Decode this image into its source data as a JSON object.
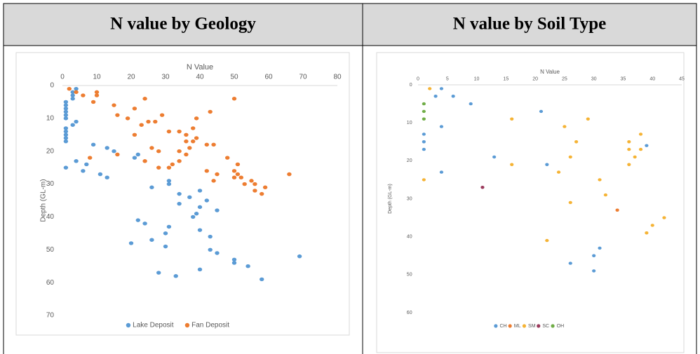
{
  "chart_data": [
    {
      "type": "scatter",
      "title": "N value by Geology",
      "xlabel": "N Value",
      "ylabel": "Depth (GL-m)",
      "xlim": [
        0,
        80
      ],
      "xticks": [
        0,
        10,
        20,
        30,
        40,
        50,
        60,
        70,
        80
      ],
      "ylim": [
        0,
        70
      ],
      "yticks": [
        0,
        10,
        20,
        30,
        40,
        50,
        60,
        70
      ],
      "y_inverted": true,
      "x_axis_position": "top",
      "legend": "bottom",
      "grid": false,
      "series": [
        {
          "name": "Lake Deposit",
          "color": "#5b9bd5",
          "x": [
            4,
            3,
            3,
            3,
            1,
            1,
            1,
            1,
            1,
            1,
            1,
            1,
            1,
            1,
            1,
            4,
            3,
            9,
            13,
            15,
            22,
            21,
            4,
            7,
            1,
            6,
            11,
            13,
            31,
            31,
            26,
            40,
            34,
            37,
            42,
            34,
            40,
            45,
            39,
            38,
            22,
            24,
            31,
            40,
            30,
            43,
            26,
            20,
            30,
            43,
            45,
            69,
            50,
            50,
            54,
            40,
            28,
            33,
            58
          ],
          "values": [
            1,
            2,
            3,
            4,
            5,
            6,
            7,
            8,
            9,
            10,
            13,
            14,
            15,
            16,
            17,
            11,
            12,
            18,
            19,
            20,
            21,
            22,
            23,
            24,
            25,
            26,
            27,
            28,
            29,
            30,
            31,
            32,
            33,
            34,
            35,
            36,
            37,
            38,
            39,
            40,
            41,
            42,
            43,
            44,
            45,
            46,
            47,
            48,
            49,
            50,
            51,
            52,
            53,
            54,
            55,
            56,
            57,
            58,
            59
          ]
        },
        {
          "name": "Fan Deposit",
          "color": "#ed7d31",
          "x": [
            2,
            4,
            10,
            6,
            10,
            24,
            50,
            9,
            15,
            21,
            43,
            16,
            29,
            19,
            39,
            25,
            27,
            23,
            38,
            31,
            34,
            36,
            21,
            39,
            36,
            38,
            42,
            44,
            26,
            37,
            28,
            34,
            16,
            36,
            48,
            8,
            24,
            34,
            51,
            32,
            28,
            31,
            42,
            50,
            45,
            51,
            66,
            50,
            52,
            44,
            55,
            53,
            56,
            59,
            56,
            58
          ],
          "values": [
            1,
            2,
            2,
            3,
            3,
            4,
            4,
            5,
            6,
            7,
            8,
            9,
            9,
            10,
            10,
            11,
            11,
            12,
            13,
            14,
            14,
            15,
            15,
            16,
            17,
            17,
            18,
            18,
            19,
            19,
            20,
            20,
            21,
            21,
            22,
            22,
            23,
            23,
            24,
            24,
            25,
            25,
            26,
            26,
            27,
            27,
            27,
            28,
            28,
            29,
            29,
            30,
            30,
            31,
            32,
            33
          ]
        }
      ]
    },
    {
      "type": "scatter",
      "title": "N value by Soil Type",
      "xlabel": "N Value",
      "ylabel": "Depth (GL-m)",
      "xlim": [
        0,
        45
      ],
      "xticks": [
        0,
        5,
        10,
        15,
        20,
        25,
        30,
        35,
        40,
        45
      ],
      "ylim": [
        0,
        60
      ],
      "yticks": [
        0,
        10,
        20,
        30,
        40,
        50,
        60
      ],
      "y_inverted": true,
      "x_axis_position": "top",
      "legend": "bottom",
      "grid": false,
      "series": [
        {
          "name": "CH",
          "color": "#5b9bd5",
          "x": [
            4,
            3,
            6,
            9,
            21,
            4,
            1,
            1,
            1,
            39,
            13,
            22,
            4,
            31,
            30,
            26,
            30
          ],
          "values": [
            1,
            3,
            3,
            5,
            7,
            11,
            13,
            15,
            17,
            16,
            19,
            21,
            23,
            43,
            45,
            47,
            49
          ]
        },
        {
          "name": "ML",
          "color": "#ed7d31",
          "x": [
            34
          ],
          "values": [
            33
          ]
        },
        {
          "name": "SM",
          "color": "#f5b335",
          "x": [
            2,
            16,
            29,
            25,
            38,
            27,
            36,
            36,
            38,
            37,
            26,
            36,
            16,
            24,
            1,
            31,
            32,
            26,
            42,
            40,
            39,
            22
          ],
          "values": [
            1,
            9,
            9,
            11,
            13,
            15,
            15,
            17,
            17,
            19,
            19,
            21,
            21,
            23,
            25,
            25,
            29,
            31,
            35,
            37,
            39,
            41
          ]
        },
        {
          "name": "SC",
          "color": "#9b3a5c",
          "x": [
            11
          ],
          "values": [
            27
          ]
        },
        {
          "name": "OH",
          "color": "#70ad47",
          "x": [
            1,
            1,
            1
          ],
          "values": [
            5,
            7,
            9
          ]
        }
      ]
    }
  ]
}
